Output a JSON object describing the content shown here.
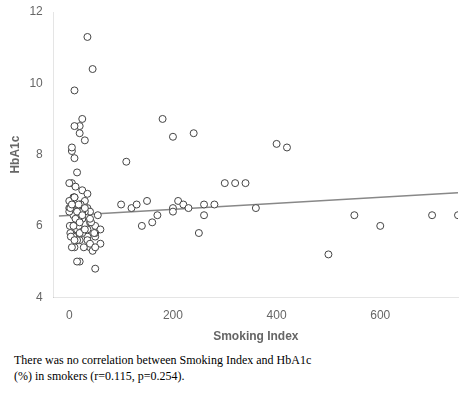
{
  "chart_data": {
    "type": "scatter",
    "xlabel": "Smoking Index",
    "ylabel": "HbA1c",
    "caption": [
      "There was no correlation between Smoking Index and HbA1c",
      "(%) in smokers (r=0.115, p=0.254)."
    ],
    "series": [
      {
        "x": [
          5,
          10,
          15,
          20,
          25,
          30,
          35,
          40,
          45,
          50,
          55,
          60,
          5,
          10,
          15,
          20,
          25,
          30,
          35,
          40,
          50,
          60,
          5,
          10,
          15,
          20,
          25,
          30,
          35,
          40,
          50,
          2,
          5,
          8,
          12,
          15,
          18,
          22,
          28,
          35,
          42,
          48,
          0,
          2,
          3,
          5,
          6,
          8,
          10,
          12,
          15,
          18,
          20,
          22,
          25,
          0,
          2,
          5,
          8,
          10,
          12,
          15,
          18,
          20,
          22,
          25,
          30,
          35,
          0,
          1,
          3,
          5,
          8,
          10,
          12,
          15,
          18,
          20,
          25,
          30,
          35,
          40,
          45,
          50,
          0,
          2,
          5,
          8,
          10,
          15,
          20,
          25,
          30,
          40,
          50,
          100,
          110,
          120,
          130,
          140,
          150,
          160,
          170,
          180,
          200,
          200,
          210,
          220,
          230,
          250,
          260,
          280,
          300,
          200,
          240,
          260,
          320,
          340,
          360,
          400,
          420,
          500,
          550,
          600,
          700,
          750
        ],
        "values": [
          7.2,
          7.9,
          6.1,
          8.8,
          7.0,
          8.4,
          6.5,
          6.4,
          10.4,
          5.7,
          6.3,
          5.5,
          8.1,
          9.8,
          6.0,
          8.6,
          6.2,
          6.3,
          6.9,
          6.1,
          6.0,
          5.9,
          8.2,
          8.8,
          7.5,
          6.6,
          9.0,
          6.7,
          11.3,
          5.4,
          5.8,
          6.5,
          6.6,
          6.8,
          5.9,
          6.0,
          5.6,
          6.2,
          5.4,
          5.7,
          6.1,
          5.8,
          6.7,
          5.8,
          6.4,
          6.5,
          6.6,
          6.0,
          6.8,
          7.1,
          5.9,
          6.0,
          5.6,
          6.3,
          6.2,
          7.2,
          6.5,
          6.0,
          5.7,
          5.4,
          6.3,
          5.6,
          6.2,
          5.0,
          6.6,
          5.8,
          6.4,
          5.9,
          6.5,
          6.0,
          5.7,
          5.4,
          6.3,
          5.6,
          6.2,
          5.0,
          6.6,
          5.8,
          6.4,
          5.9,
          5.6,
          6.2,
          5.3,
          4.8,
          6.4,
          6.5,
          6.6,
          6.0,
          6.8,
          6.4,
          6.1,
          6.3,
          6.5,
          5.5,
          5.4,
          6.6,
          7.8,
          6.5,
          6.6,
          6.0,
          6.7,
          6.1,
          6.3,
          9.0,
          6.5,
          8.5,
          6.7,
          6.6,
          6.5,
          5.8,
          6.6,
          6.6,
          7.2,
          6.4,
          8.6,
          6.3,
          7.2,
          7.2,
          6.5,
          8.3,
          8.2,
          5.2,
          6.3,
          6.0,
          6.3,
          6.3
        ],
        "color": "#444444",
        "marker": "open_circle"
      },
      {
        "type": "line",
        "x": [
          -20,
          750
        ],
        "values": [
          6.28,
          6.93
        ],
        "color": "#888888",
        "line_style": "solid"
      }
    ],
    "xlim": [
      -30,
      750
    ],
    "xticks": [
      0,
      200,
      400,
      600
    ],
    "ylim": [
      4,
      12
    ],
    "yticks": [
      4,
      6,
      8,
      10,
      12
    ],
    "grid": false
  }
}
